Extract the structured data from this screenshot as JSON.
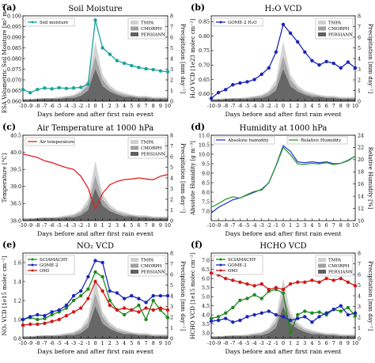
{
  "figure": {
    "xlabel": "Days before and after first rain event",
    "right_ylabel": "Precipitation [mm day⁻¹]",
    "precip_legend": [
      "TMPA",
      "CMORPH",
      "PERSIANN"
    ],
    "precip_colors": {
      "TMPA": "#cfcfcf",
      "CMORPH": "#a0a0a0",
      "PERSIANN": "#606060"
    }
  },
  "chart_data": [
    {
      "panel": "(a)",
      "title": "Soil Moisture",
      "type": "line",
      "x": [
        -10,
        -9,
        -8,
        -7,
        -6,
        -5,
        -4,
        -3,
        -2,
        -1,
        0,
        1,
        2,
        3,
        4,
        5,
        6,
        7,
        8,
        9,
        10
      ],
      "xlim": [
        -10,
        10
      ],
      "ylabel": "ESA Volumetric Soil Moisture [m³ m⁻³]",
      "ylim": [
        0.06,
        0.1
      ],
      "yticks": [
        0.06,
        0.065,
        0.07,
        0.075,
        0.08,
        0.085,
        0.09,
        0.095,
        0.1
      ],
      "ytick_labels": [
        "0.060",
        "0.065",
        "0.070",
        "0.075",
        "0.080",
        "0.085",
        "0.090",
        "0.095",
        "0.100"
      ],
      "y2lim": [
        0,
        8
      ],
      "y2ticks": [
        0,
        1,
        2,
        3,
        4,
        5,
        6,
        7,
        8
      ],
      "legend_position": "top-left",
      "series": [
        {
          "name": "Soil moisture",
          "color": "#1aa39a",
          "marker": "o",
          "values": [
            0.0655,
            0.064,
            0.0655,
            0.0662,
            0.0658,
            0.0663,
            0.066,
            0.0662,
            0.0665,
            0.068,
            0.098,
            0.085,
            0.082,
            0.079,
            0.0778,
            0.0767,
            0.0758,
            0.0752,
            0.0748,
            0.0742,
            0.0738
          ]
        }
      ],
      "precipitation": {
        "TMPA": [
          0.2,
          0.2,
          0.3,
          0.3,
          0.3,
          0.4,
          0.5,
          0.6,
          1.0,
          2.0,
          5.6,
          2.5,
          1.5,
          1.0,
          0.8,
          0.6,
          0.5,
          0.5,
          0.4,
          0.4,
          0.4
        ],
        "CMORPH": [
          0.2,
          0.2,
          0.2,
          0.3,
          0.3,
          0.3,
          0.4,
          0.5,
          0.8,
          1.5,
          4.2,
          2.0,
          1.2,
          0.8,
          0.6,
          0.5,
          0.4,
          0.4,
          0.3,
          0.3,
          0.3
        ],
        "PERSIANN": [
          0.1,
          0.1,
          0.2,
          0.2,
          0.2,
          0.2,
          0.3,
          0.3,
          0.5,
          1.0,
          3.0,
          1.4,
          0.9,
          0.6,
          0.4,
          0.4,
          0.3,
          0.3,
          0.2,
          0.2,
          0.2
        ]
      }
    },
    {
      "panel": "(b)",
      "title": "H₂O VCD",
      "type": "line",
      "x": [
        -10,
        -9,
        -8,
        -7,
        -6,
        -5,
        -4,
        -3,
        -2,
        -1,
        0,
        1,
        2,
        3,
        4,
        5,
        6,
        7,
        8,
        9,
        10
      ],
      "xlim": [
        -10,
        10
      ],
      "ylabel": "H₂O VCD [1e23 molec cm⁻²]",
      "ylim": [
        0.575,
        0.87
      ],
      "yticks": [
        0.6,
        0.65,
        0.7,
        0.75,
        0.8,
        0.85
      ],
      "ytick_labels": [
        "0.60",
        "0.65",
        "0.70",
        "0.75",
        "0.80",
        "0.85"
      ],
      "y2lim": [
        0,
        8
      ],
      "y2ticks": [
        0,
        1,
        2,
        3,
        4,
        5,
        6,
        7,
        8
      ],
      "legend_position": "top-left",
      "series": [
        {
          "name": "GOME-2 H₂O",
          "color": "#1a25b8",
          "marker": "o",
          "values": [
            0.585,
            0.605,
            0.615,
            0.632,
            0.638,
            0.642,
            0.65,
            0.668,
            0.69,
            0.745,
            0.84,
            0.81,
            0.78,
            0.745,
            0.715,
            0.7,
            0.712,
            0.706,
            0.69,
            0.71,
            0.69
          ]
        }
      ],
      "precipitation": {
        "TMPA": [
          0.2,
          0.2,
          0.3,
          0.3,
          0.3,
          0.4,
          0.5,
          0.6,
          1.0,
          2.0,
          5.6,
          2.5,
          1.5,
          1.0,
          0.8,
          0.6,
          0.5,
          0.5,
          0.4,
          0.4,
          0.4
        ],
        "CMORPH": [
          0.2,
          0.2,
          0.2,
          0.3,
          0.3,
          0.3,
          0.4,
          0.5,
          0.8,
          1.5,
          4.2,
          2.0,
          1.2,
          0.8,
          0.6,
          0.5,
          0.4,
          0.4,
          0.3,
          0.3,
          0.3
        ],
        "PERSIANN": [
          0.1,
          0.1,
          0.2,
          0.2,
          0.2,
          0.2,
          0.3,
          0.3,
          0.5,
          1.0,
          3.0,
          1.4,
          0.9,
          0.6,
          0.4,
          0.4,
          0.3,
          0.3,
          0.2,
          0.2,
          0.2
        ]
      }
    },
    {
      "panel": "(c)",
      "title": "Air Temperature at 1000 hPa",
      "type": "line",
      "x": [
        -10,
        -9,
        -8,
        -7,
        -6,
        -5,
        -4,
        -3,
        -2,
        -1,
        0,
        1,
        2,
        3,
        4,
        5,
        6,
        7,
        8,
        9,
        10
      ],
      "xlim": [
        -10,
        10
      ],
      "ylabel": "Temperature [°C]",
      "ylim": [
        38.0,
        40.5
      ],
      "yticks": [
        38.0,
        38.5,
        39.0,
        39.5,
        40.0,
        40.5
      ],
      "ytick_labels": [
        "38.0",
        "38.5",
        "39.0",
        "39.5",
        "40.0",
        "40.5"
      ],
      "y2lim": [
        0,
        8
      ],
      "y2ticks": [
        0,
        1,
        2,
        3,
        4,
        5,
        6,
        7,
        8
      ],
      "legend_position": "top-left",
      "series": [
        {
          "name": "Air temperature",
          "color": "#e02020",
          "marker": "",
          "values": [
            39.95,
            39.9,
            39.85,
            39.75,
            39.7,
            39.62,
            39.55,
            39.5,
            39.3,
            38.95,
            38.33,
            38.8,
            39.05,
            39.15,
            39.2,
            39.22,
            39.25,
            39.22,
            39.2,
            39.3,
            39.35
          ]
        }
      ],
      "precipitation": {
        "TMPA": [
          0.2,
          0.2,
          0.3,
          0.3,
          0.3,
          0.4,
          0.5,
          0.6,
          1.0,
          2.0,
          5.6,
          2.5,
          1.5,
          1.0,
          0.8,
          0.6,
          0.5,
          0.5,
          0.4,
          0.4,
          0.4
        ],
        "CMORPH": [
          0.2,
          0.2,
          0.2,
          0.3,
          0.3,
          0.3,
          0.4,
          0.5,
          0.8,
          1.5,
          4.2,
          2.0,
          1.2,
          0.8,
          0.6,
          0.5,
          0.4,
          0.4,
          0.3,
          0.3,
          0.3
        ],
        "PERSIANN": [
          0.1,
          0.1,
          0.2,
          0.2,
          0.2,
          0.2,
          0.3,
          0.3,
          0.5,
          1.0,
          3.0,
          1.4,
          0.9,
          0.6,
          0.4,
          0.4,
          0.3,
          0.3,
          0.2,
          0.2,
          0.2
        ]
      }
    },
    {
      "panel": "(d)",
      "title": "Humidity at 1000 hPa",
      "type": "line",
      "x": [
        -10,
        -9,
        -8,
        -7,
        -6,
        -5,
        -4,
        -3,
        -2,
        -1,
        0,
        1,
        2,
        3,
        4,
        5,
        6,
        7,
        8,
        9,
        10
      ],
      "xlim": [
        -10,
        10
      ],
      "ylabel": "Absolute Humidity [g m⁻³]",
      "ylim": [
        6.5,
        11.0
      ],
      "yticks": [
        7.0,
        7.5,
        8.0,
        8.5,
        9.0,
        9.5,
        10.0,
        10.5,
        11.0
      ],
      "ytick_labels": [
        "7.0",
        "7.5",
        "8.0",
        "8.5",
        "9.0",
        "9.5",
        "10.0",
        "10.5",
        "11.0"
      ],
      "y2label": "Relative Humidity [%]",
      "y2lim": [
        10,
        24
      ],
      "y2ticks": [
        10,
        12,
        14,
        16,
        18,
        20,
        22,
        24
      ],
      "legend_position": "top",
      "series": [
        {
          "name": "Absolute humidity",
          "color": "#2b3bd0",
          "marker": "",
          "axis": "left",
          "values": [
            6.9,
            7.2,
            7.4,
            7.6,
            7.7,
            7.85,
            8.0,
            8.15,
            8.5,
            9.4,
            10.45,
            10.15,
            9.6,
            9.55,
            9.6,
            9.55,
            9.6,
            9.5,
            9.52,
            9.68,
            9.9
          ]
        },
        {
          "name": "Relative Humidity",
          "color": "#2f9a2f",
          "marker": "",
          "axis": "right",
          "values": [
            12.2,
            12.8,
            13.5,
            13.9,
            13.7,
            14.3,
            14.8,
            15.0,
            16.2,
            19.0,
            22.0,
            20.8,
            19.3,
            19.2,
            19.4,
            19.3,
            19.5,
            19.2,
            19.4,
            19.8,
            20.6
          ]
        }
      ]
    },
    {
      "panel": "(e)",
      "title": "NO₂ VCD",
      "type": "line",
      "x": [
        -10,
        -9,
        -8,
        -7,
        -6,
        -5,
        -4,
        -3,
        -2,
        -1,
        0,
        1,
        2,
        3,
        4,
        5,
        6,
        7,
        8,
        9,
        10
      ],
      "xlim": [
        -10,
        10
      ],
      "ylabel": "NO₂ VCD [1e15 molec cm⁻²]",
      "ylim": [
        0.8,
        1.7
      ],
      "yticks": [
        0.8,
        1.0,
        1.2,
        1.4,
        1.6
      ],
      "ytick_labels": [
        "0.8",
        "1.0",
        "1.2",
        "1.4",
        "1.6"
      ],
      "y2lim": [
        0,
        8
      ],
      "y2ticks": [
        0,
        1,
        2,
        3,
        4,
        5,
        6,
        7,
        8
      ],
      "legend_position": "top-left",
      "series": [
        {
          "name": "SCIAMACHY",
          "color": "#1e8a1e",
          "marker": "o",
          "values": [
            1.0,
            1.02,
            1.0,
            1.01,
            1.05,
            1.08,
            1.12,
            1.2,
            1.25,
            1.32,
            1.5,
            1.45,
            1.2,
            1.1,
            1.05,
            1.1,
            1.15,
            1.0,
            1.2,
            1.1,
            1.02
          ]
        },
        {
          "name": "GOME-2",
          "color": "#1a25b8",
          "marker": "o",
          "values": [
            1.0,
            1.03,
            1.05,
            1.04,
            1.08,
            1.1,
            1.15,
            1.25,
            1.3,
            1.45,
            1.62,
            1.6,
            1.3,
            1.28,
            1.22,
            1.25,
            1.22,
            1.18,
            1.25,
            1.25,
            1.25
          ]
        },
        {
          "name": "OMI",
          "color": "#d01818",
          "marker": "o",
          "values": [
            0.94,
            0.95,
            0.95,
            0.96,
            0.98,
            1.0,
            1.04,
            1.08,
            1.12,
            1.22,
            1.4,
            1.3,
            1.15,
            1.1,
            1.12,
            1.1,
            1.08,
            1.12,
            1.1,
            1.12,
            1.1
          ]
        }
      ],
      "precipitation": {
        "TMPA": [
          0.2,
          0.2,
          0.3,
          0.3,
          0.3,
          0.4,
          0.5,
          0.6,
          1.0,
          2.0,
          5.6,
          2.5,
          1.5,
          1.0,
          0.8,
          0.6,
          0.5,
          0.5,
          0.4,
          0.4,
          0.4
        ],
        "CMORPH": [
          0.2,
          0.2,
          0.2,
          0.3,
          0.3,
          0.3,
          0.4,
          0.5,
          0.8,
          1.5,
          4.2,
          2.0,
          1.2,
          0.8,
          0.6,
          0.5,
          0.4,
          0.4,
          0.3,
          0.3,
          0.3
        ],
        "PERSIANN": [
          0.1,
          0.1,
          0.2,
          0.2,
          0.2,
          0.2,
          0.3,
          0.3,
          0.5,
          1.0,
          3.0,
          1.4,
          0.9,
          0.6,
          0.4,
          0.4,
          0.3,
          0.3,
          0.2,
          0.2,
          0.2
        ]
      }
    },
    {
      "panel": "(f)",
      "title": "HCHO VCD",
      "type": "line",
      "x": [
        -10,
        -9,
        -8,
        -7,
        -6,
        -5,
        -4,
        -3,
        -2,
        -1,
        0,
        1,
        2,
        3,
        4,
        5,
        6,
        7,
        8,
        9,
        10
      ],
      "xlim": [
        -10,
        10
      ],
      "ylabel": "HCHO VCD [1e15 molec cm⁻²]",
      "ylim": [
        2.7,
        7.4
      ],
      "yticks": [
        3.0,
        3.5,
        4.0,
        4.5,
        5.0,
        5.5,
        6.0,
        6.5,
        7.0
      ],
      "ytick_labels": [
        "3.0",
        "3.5",
        "4.0",
        "4.5",
        "5.0",
        "5.5",
        "6.0",
        "6.5",
        "7.0"
      ],
      "y2lim": [
        0,
        8
      ],
      "y2ticks": [
        0,
        1,
        2,
        3,
        4,
        5,
        6,
        7,
        8
      ],
      "legend_position": "top-left",
      "series": [
        {
          "name": "SCIAMACHY",
          "color": "#1e8a1e",
          "marker": "o",
          "values": [
            3.8,
            3.9,
            4.1,
            4.4,
            4.8,
            4.9,
            5.1,
            4.9,
            5.3,
            5.4,
            5.2,
            3.0,
            4.0,
            4.2,
            4.1,
            4.15,
            4.0,
            4.3,
            4.2,
            4.4,
            3.95
          ]
        },
        {
          "name": "GOME-2",
          "color": "#1a25b8",
          "marker": "o",
          "values": [
            3.65,
            3.7,
            3.8,
            3.6,
            3.7,
            3.9,
            4.0,
            4.1,
            4.2,
            4.0,
            3.9,
            3.7,
            3.8,
            3.9,
            3.6,
            3.9,
            4.1,
            4.3,
            4.5,
            4.0,
            4.1
          ]
        },
        {
          "name": "OMI",
          "color": "#d01818",
          "marker": "o",
          "values": [
            6.3,
            6.2,
            6.0,
            5.9,
            5.8,
            5.7,
            5.6,
            5.7,
            5.4,
            5.5,
            5.4,
            5.7,
            5.8,
            5.8,
            5.9,
            5.8,
            6.0,
            5.9,
            6.0,
            5.8,
            5.6
          ]
        }
      ],
      "precipitation": {
        "TMPA": [
          0.2,
          0.2,
          0.3,
          0.3,
          0.3,
          0.4,
          0.5,
          0.6,
          1.0,
          2.0,
          5.6,
          2.5,
          1.5,
          1.0,
          0.8,
          0.6,
          0.5,
          0.5,
          0.4,
          0.4,
          0.4
        ],
        "CMORPH": [
          0.2,
          0.2,
          0.2,
          0.3,
          0.3,
          0.3,
          0.4,
          0.5,
          0.8,
          1.5,
          4.2,
          2.0,
          1.2,
          0.8,
          0.6,
          0.5,
          0.4,
          0.4,
          0.3,
          0.3,
          0.3
        ],
        "PERSIANN": [
          0.1,
          0.1,
          0.2,
          0.2,
          0.2,
          0.2,
          0.3,
          0.3,
          0.5,
          1.0,
          3.0,
          1.4,
          0.9,
          0.6,
          0.4,
          0.4,
          0.3,
          0.3,
          0.2,
          0.2,
          0.2
        ]
      }
    }
  ]
}
